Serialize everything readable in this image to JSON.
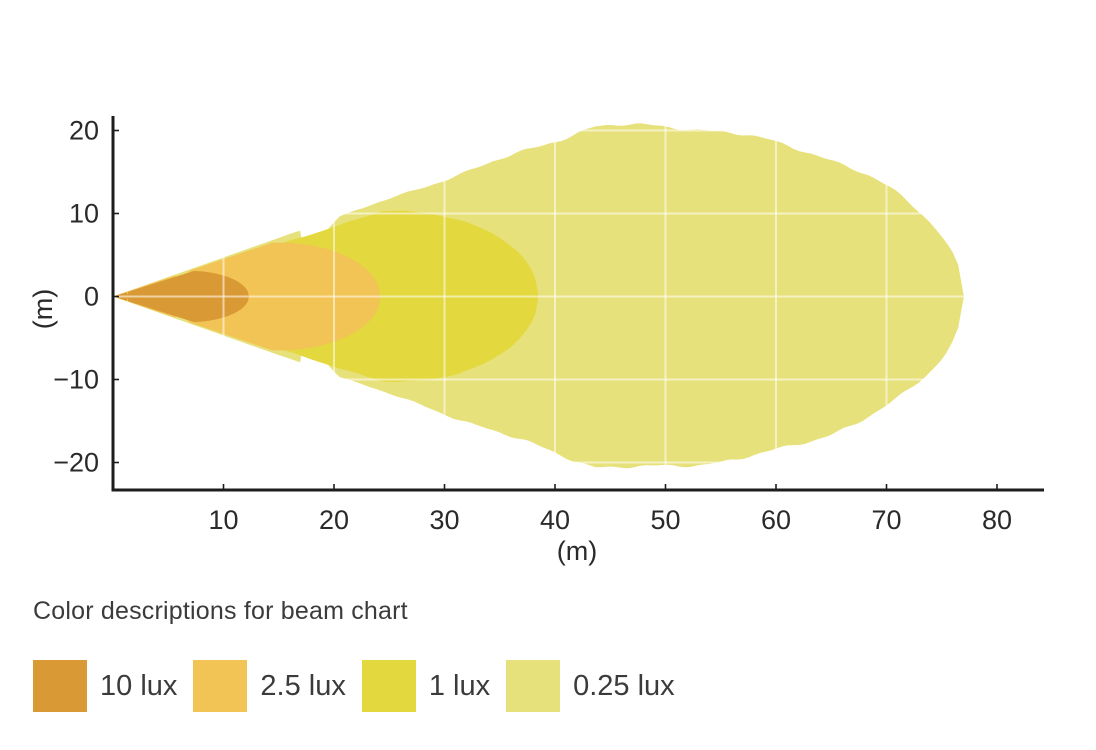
{
  "page": {
    "background": "#ffffff"
  },
  "legend": {
    "title": "Color descriptions for beam chart",
    "items": [
      {
        "label": "10 lux",
        "color": "#D99A35"
      },
      {
        "label": "2.5 lux",
        "color": "#F2C355"
      },
      {
        "label": "1 lux",
        "color": "#E3D83E"
      },
      {
        "label": "0.25 lux",
        "color": "#E7E17B"
      }
    ]
  },
  "chart_data": {
    "type": "area",
    "description": "Isolux beam pattern chart: nested teardrop-shaped light intensity contours emitted from origin along the x axis",
    "title": "",
    "xlabel": "(m)",
    "ylabel": "(m)",
    "xticks": [
      10,
      20,
      30,
      40,
      50,
      60,
      70,
      80
    ],
    "yticks": [
      20,
      10,
      0,
      -10,
      -20
    ],
    "xlim": [
      0,
      84
    ],
    "ylim": [
      -23.3,
      21.9
    ],
    "grid": true,
    "grid_color": "rgba(255,255,255,0.55)",
    "axis_color": "#1d1d1d",
    "tick_text_color": "#2a2a2a",
    "legend_position": "bottom",
    "series": [
      {
        "name": "0.25 lux",
        "color": "#E7E17B",
        "reach_m": 77,
        "max_halfwidth_m": 20.6,
        "cap_center_m": 47,
        "cap_radius_m": 30,
        "cone_slope": 0.47,
        "edge_noise_m": 0.45
      },
      {
        "name": "1 lux",
        "color": "#E3D83E",
        "reach_m": 38.5,
        "max_halfwidth_m": 10.3,
        "cap_center_m": 25.5,
        "cap_radius_m": 13,
        "cone_slope": 0.42,
        "edge_noise_m": 0.12
      },
      {
        "name": "2.5 lux",
        "color": "#F2C355",
        "reach_m": 24.2,
        "max_halfwidth_m": 6.5,
        "cap_center_m": 15,
        "cap_radius_m": 9.2,
        "cone_slope": 0.45,
        "edge_noise_m": 0
      },
      {
        "name": "10 lux",
        "color": "#D99A35",
        "reach_m": 12.3,
        "max_halfwidth_m": 3.1,
        "cap_center_m": 6.8,
        "cap_radius_m": 5.5,
        "cone_slope": 0.42,
        "edge_noise_m": 0
      }
    ]
  }
}
